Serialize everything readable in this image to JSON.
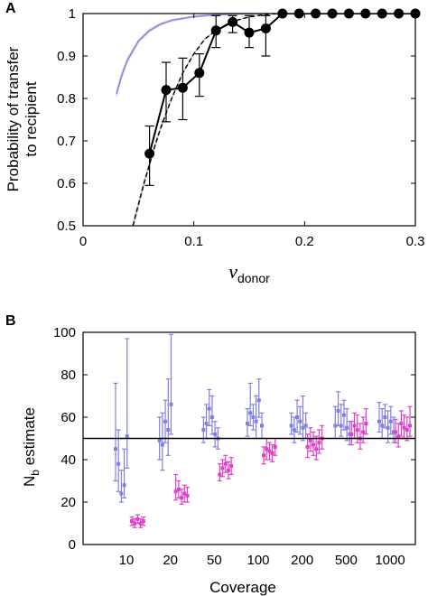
{
  "panels": {
    "A": {
      "label": "A"
    },
    "B": {
      "label": "B"
    }
  },
  "colors": {
    "model_blue": "#7b7fd6",
    "model_blue_band": "#d6d6ee",
    "model_grey_band": "#c8c8c8",
    "data_black": "#000000",
    "estimate_blue": "#8080e0",
    "estimate_magenta": "#e040c8"
  },
  "chart_data": [
    {
      "panel": "A",
      "type": "line",
      "ylabel_line1": "Probability of transfer",
      "ylabel_line2": "to recipient",
      "xlabel_symbol": "ν",
      "xlabel_sub": "donor",
      "xlim": [
        0,
        0.3
      ],
      "ylim": [
        0.5,
        1
      ],
      "xticks": [
        "0",
        "0.1",
        "0.2",
        "0.3"
      ],
      "xtick_values": [
        0,
        0.1,
        0.2,
        0.3
      ],
      "yticks": [
        "0.5",
        "0.6",
        "0.7",
        "0.8",
        "0.9",
        "1"
      ],
      "ytick_values": [
        0.5,
        0.6,
        0.7,
        0.8,
        0.9,
        1.0
      ],
      "series": [
        {
          "kind": "data",
          "x": [
            0.06,
            0.075,
            0.09,
            0.105,
            0.12,
            0.135,
            0.15,
            0.165,
            0.18,
            0.195,
            0.21,
            0.225,
            0.24,
            0.255,
            0.27,
            0.285,
            0.3
          ],
          "y": [
            0.67,
            0.82,
            0.825,
            0.86,
            0.96,
            0.98,
            0.955,
            0.965,
            1,
            1,
            1,
            1,
            1,
            1,
            1,
            1,
            1
          ],
          "err_low": [
            0.595,
            0.745,
            0.75,
            0.805,
            0.92,
            0.955,
            0.92,
            0.9,
            1,
            1,
            1,
            1,
            1,
            1,
            1,
            1,
            1
          ],
          "err_high": [
            0.735,
            0.885,
            0.895,
            0.905,
            0.995,
            0.995,
            0.995,
            0.995,
            1,
            1,
            1,
            1,
            1,
            1,
            1,
            1,
            1
          ]
        },
        {
          "kind": "model-grey",
          "x": [
            0.045,
            0.05,
            0.055,
            0.06,
            0.065,
            0.07,
            0.08,
            0.09,
            0.1,
            0.11,
            0.12,
            0.13,
            0.14,
            0.15,
            0.16,
            0.17,
            0.18
          ],
          "y": [
            0.5,
            0.55,
            0.6,
            0.645,
            0.69,
            0.73,
            0.8,
            0.86,
            0.905,
            0.94,
            0.96,
            0.975,
            0.985,
            0.992,
            0.996,
            0.999,
            1.0
          ],
          "band": 0.02
        },
        {
          "kind": "model-blue",
          "x": [
            0.03,
            0.035,
            0.04,
            0.05,
            0.06,
            0.07,
            0.08,
            0.1,
            0.12,
            0.14,
            0.17,
            0.2
          ],
          "y": [
            0.81,
            0.855,
            0.89,
            0.935,
            0.96,
            0.975,
            0.984,
            0.993,
            0.997,
            0.999,
            1.0,
            1.0
          ],
          "band": 0.05
        }
      ]
    },
    {
      "panel": "B",
      "type": "scatter",
      "ylabel_main": "N",
      "ylabel_sub": "b",
      "ylabel_rest": " estimate",
      "xlabel": "Coverage",
      "ylim": [
        0,
        100
      ],
      "yticks": [
        "0",
        "20",
        "40",
        "60",
        "80",
        "100"
      ],
      "ytick_values": [
        0,
        20,
        40,
        60,
        80,
        100
      ],
      "categories": [
        "10",
        "20",
        "50",
        "100",
        "200",
        "500",
        "1000"
      ],
      "reference_line": 50,
      "series": [
        {
          "name": "",
          "color": "blue",
          "groups": [
            [
              [
                45,
                30,
                76
              ],
              [
                38,
                25,
                54
              ],
              [
                24,
                20,
                35
              ],
              [
                28,
                22,
                45
              ],
              [
                51,
                36,
                97
              ]
            ],
            [
              [
                49,
                40,
                60
              ],
              [
                47,
                35,
                62
              ],
              [
                58,
                48,
                68
              ],
              [
                54,
                42,
                78
              ],
              [
                66,
                52,
                99
              ]
            ],
            [
              [
                54,
                48,
                60
              ],
              [
                57,
                50,
                66
              ],
              [
                64,
                56,
                73
              ],
              [
                60,
                52,
                70
              ],
              [
                52,
                46,
                58
              ],
              [
                50,
                45,
                55
              ]
            ],
            [
              [
                57,
                51,
                64
              ],
              [
                62,
                56,
                76
              ],
              [
                60,
                54,
                66
              ],
              [
                58,
                50,
                70
              ],
              [
                68,
                60,
                78
              ],
              [
                56,
                50,
                62
              ]
            ],
            [
              [
                56,
                52,
                62
              ],
              [
                54,
                48,
                60
              ],
              [
                60,
                53,
                68
              ],
              [
                58,
                52,
                65
              ],
              [
                55,
                49,
                70
              ],
              [
                56,
                50,
                62
              ]
            ],
            [
              [
                56,
                50,
                65
              ],
              [
                63,
                56,
                72
              ],
              [
                56,
                51,
                66
              ],
              [
                61,
                54,
                68
              ],
              [
                55,
                49,
                64
              ],
              [
                52,
                47,
                58
              ]
            ],
            [
              [
                58,
                53,
                67
              ],
              [
                56,
                50,
                64
              ],
              [
                60,
                55,
                66
              ],
              [
                55,
                48,
                63
              ],
              [
                58,
                52,
                65
              ],
              [
                53,
                48,
                60
              ]
            ]
          ]
        },
        {
          "name": "",
          "color": "magenta",
          "groups": [
            [
              [
                11,
                9,
                13
              ],
              [
                10,
                8,
                12
              ],
              [
                12,
                10,
                14
              ],
              [
                10,
                8,
                12
              ],
              [
                11,
                9,
                13
              ]
            ],
            [
              [
                25,
                21,
                33
              ],
              [
                26,
                22,
                30
              ],
              [
                22,
                19,
                26
              ],
              [
                24,
                20,
                28
              ],
              [
                23,
                20,
                27
              ]
            ],
            [
              [
                33,
                30,
                38
              ],
              [
                36,
                32,
                40
              ],
              [
                38,
                34,
                42
              ],
              [
                35,
                31,
                39
              ],
              [
                37,
                33,
                41
              ]
            ],
            [
              [
                42,
                38,
                46
              ],
              [
                45,
                40,
                50
              ],
              [
                44,
                40,
                48
              ],
              [
                43,
                39,
                47
              ],
              [
                46,
                42,
                50
              ]
            ],
            [
              [
                46,
                41,
                52
              ],
              [
                49,
                44,
                55
              ],
              [
                47,
                42,
                53
              ],
              [
                45,
                40,
                51
              ],
              [
                48,
                43,
                54
              ],
              [
                50,
                45,
                56
              ]
            ],
            [
              [
                52,
                47,
                58
              ],
              [
                56,
                50,
                62
              ],
              [
                54,
                48,
                61
              ],
              [
                50,
                45,
                57
              ],
              [
                53,
                48,
                60
              ],
              [
                57,
                52,
                64
              ]
            ],
            [
              [
                53,
                48,
                59
              ],
              [
                51,
                46,
                57
              ],
              [
                57,
                51,
                63
              ],
              [
                55,
                50,
                61
              ],
              [
                54,
                49,
                60
              ],
              [
                56,
                51,
                65
              ]
            ]
          ]
        }
      ]
    }
  ]
}
